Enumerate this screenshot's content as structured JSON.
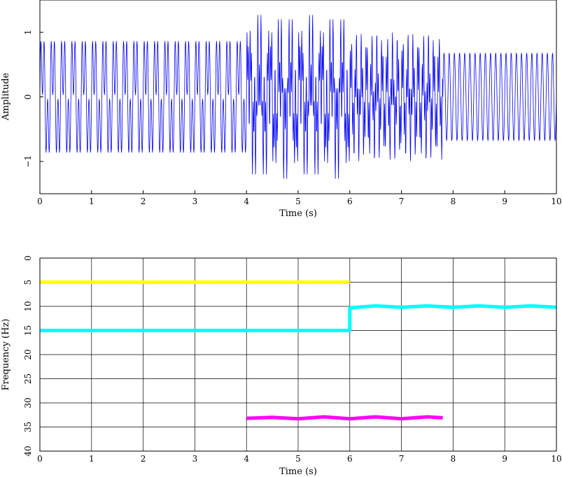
{
  "chart_data": [
    {
      "type": "line",
      "xlabel": "Time (s)",
      "ylabel": "Amplitude",
      "xlim": [
        0,
        10
      ],
      "ylim": [
        -1.5,
        1.5
      ],
      "x_ticks": [
        "0",
        "1",
        "2",
        "3",
        "4",
        "5",
        "6",
        "7",
        "8",
        "9",
        "10"
      ],
      "y_ticks": [
        "1",
        "0",
        "−1"
      ],
      "y_tick_values": [
        1,
        0,
        -1
      ],
      "grid": false,
      "line_color": "#0000ff",
      "series": [
        {
          "sample_rate_hz": 200,
          "segments": [
            {
              "t_start": 0,
              "t_end": 4,
              "components": [
                {
                  "freq_hz": 5,
                  "amp": 0.58
                },
                {
                  "freq_hz": 15,
                  "amp": 0.55
                }
              ]
            },
            {
              "t_start": 4,
              "t_end": 6,
              "components": [
                {
                  "freq_hz": 5,
                  "amp": 0.5
                },
                {
                  "freq_hz": 15,
                  "amp": 0.5
                },
                {
                  "freq_hz": 33,
                  "amp": 0.5
                }
              ]
            },
            {
              "t_start": 6,
              "t_end": 7.8,
              "components": [
                {
                  "freq_hz": 10,
                  "amp": 0.55
                },
                {
                  "freq_hz": 33,
                  "amp": 0.45
                }
              ]
            },
            {
              "t_start": 7.8,
              "t_end": 10,
              "components": [
                {
                  "freq_hz": 10,
                  "amp": 0.68
                }
              ]
            }
          ]
        }
      ]
    },
    {
      "type": "line",
      "xlabel": "Time (s)",
      "ylabel": "Frequency (Hz)",
      "xlim": [
        0,
        10
      ],
      "ylim": [
        0,
        40
      ],
      "y_inverted": true,
      "x_ticks": [
        "0",
        "1",
        "2",
        "3",
        "4",
        "5",
        "6",
        "7",
        "8",
        "9",
        "10"
      ],
      "y_ticks": [
        "0",
        "5",
        "10",
        "15",
        "20",
        "25",
        "30",
        "35",
        "40"
      ],
      "grid": true,
      "series": [
        {
          "color": "#ffff00",
          "x": [
            0,
            6
          ],
          "y": [
            5,
            5
          ]
        },
        {
          "color": "#00ffff",
          "x": [
            0,
            6,
            6,
            6.5,
            7,
            7.5,
            8,
            8.5,
            9,
            9.5,
            10
          ],
          "y": [
            15,
            15,
            10.3,
            9.9,
            10.2,
            9.9,
            10.2,
            9.9,
            10.2,
            9.9,
            10.2
          ]
        },
        {
          "color": "#ff00ff",
          "x": [
            4,
            4.5,
            5,
            5.5,
            6,
            6.5,
            7,
            7.5,
            7.8
          ],
          "y": [
            33.2,
            33.0,
            33.3,
            32.9,
            33.3,
            32.9,
            33.3,
            32.9,
            33.1
          ]
        }
      ]
    }
  ]
}
